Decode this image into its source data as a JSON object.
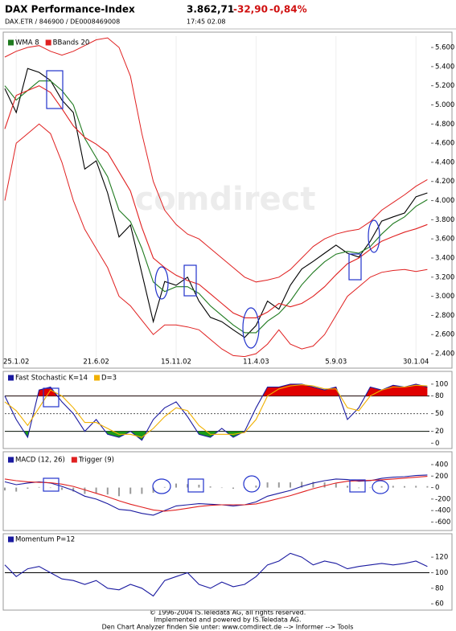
{
  "header": {
    "title": "DAX Performance-Index",
    "subtitle": "DAX.ETR / 846900 / DE0008469008",
    "price": "3.862,71",
    "change": "-32,90",
    "change_pct": "-0,84%",
    "time": "17:45  02.08"
  },
  "chart_data": [
    {
      "type": "line",
      "watermark": "comdirect",
      "categories": [
        null,
        "25.1.02",
        null,
        null,
        null,
        null,
        null,
        null,
        "21.6.02",
        null,
        null,
        null,
        null,
        null,
        null,
        "15.11.02",
        null,
        null,
        null,
        null,
        null,
        null,
        "11.4.03",
        null,
        null,
        null,
        null,
        null,
        null,
        "5.9.03",
        null,
        null,
        null,
        null,
        null,
        null,
        "30.1.04",
        null
      ],
      "series": [
        {
          "color": "#000000",
          "values": [
            5170,
            4920,
            5380,
            5340,
            5255,
            5050,
            4920,
            4330,
            4415,
            4080,
            3620,
            3745,
            3240,
            2735,
            3155,
            3115,
            3200,
            2950,
            2780,
            2735,
            2650,
            2570,
            2695,
            2950,
            2865,
            3115,
            3285,
            3365,
            3450,
            3535,
            3450,
            3410,
            3575,
            3785,
            3830,
            3870,
            4040,
            4080
          ]
        },
        {
          "name": "WMA 8",
          "color": "#1f7a1f",
          "values": [
            5200,
            5050,
            5150,
            5250,
            5250,
            5150,
            5000,
            4650,
            4450,
            4250,
            3900,
            3780,
            3500,
            3150,
            3050,
            3100,
            3100,
            3030,
            2900,
            2800,
            2700,
            2620,
            2620,
            2740,
            2820,
            2950,
            3120,
            3250,
            3360,
            3440,
            3470,
            3450,
            3520,
            3650,
            3760,
            3830,
            3940,
            4010
          ]
        },
        {
          "name": "BBands 20",
          "color": "#e02020",
          "values": [
            4750,
            5100,
            5150,
            5200,
            5130,
            4960,
            4780,
            4660,
            4590,
            4500,
            4300,
            4100,
            3720,
            3400,
            3300,
            3220,
            3165,
            3125,
            3025,
            2925,
            2825,
            2775,
            2775,
            2835,
            2925,
            2890,
            2925,
            3000,
            3100,
            3225,
            3340,
            3400,
            3490,
            3575,
            3625,
            3670,
            3705,
            3750
          ],
          "upper": [
            5500,
            5560,
            5600,
            5620,
            5560,
            5520,
            5560,
            5620,
            5680,
            5700,
            5600,
            5300,
            4700,
            4200,
            3900,
            3750,
            3650,
            3600,
            3500,
            3400,
            3300,
            3200,
            3150,
            3170,
            3200,
            3280,
            3400,
            3520,
            3600,
            3650,
            3680,
            3700,
            3780,
            3900,
            3980,
            4060,
            4150,
            4220
          ],
          "lower": [
            4000,
            4600,
            4700,
            4800,
            4700,
            4400,
            4000,
            3700,
            3500,
            3300,
            3000,
            2900,
            2750,
            2600,
            2700,
            2700,
            2680,
            2650,
            2550,
            2450,
            2380,
            2370,
            2400,
            2500,
            2650,
            2500,
            2450,
            2480,
            2600,
            2800,
            3000,
            3100,
            3200,
            3250,
            3270,
            3280,
            3260,
            3280
          ]
        }
      ],
      "ylim": [
        2350,
        5718
      ],
      "yticks": [
        {
          "value": 2400,
          "label": "2.400"
        },
        {
          "value": 2600,
          "label": "2.600"
        },
        {
          "value": 2800,
          "label": "2.800"
        },
        {
          "value": 3000,
          "label": "3.000"
        },
        {
          "value": 3200,
          "label": "3.200"
        },
        {
          "value": 3400,
          "label": "3.400"
        },
        {
          "value": 3600,
          "label": "3.600"
        },
        {
          "value": 3800,
          "label": "3.800"
        },
        {
          "value": 4000,
          "label": "4.000"
        },
        {
          "value": 4200,
          "label": "4.200"
        },
        {
          "value": 4400,
          "label": "4.400"
        },
        {
          "value": 4600,
          "label": "4.600"
        },
        {
          "value": 4800,
          "label": "4.800"
        },
        {
          "value": 5000,
          "label": "5.000"
        },
        {
          "value": 5200,
          "label": "5.200"
        },
        {
          "value": 5400,
          "label": "5.400"
        },
        {
          "value": 5600,
          "label": "5.600"
        }
      ]
    },
    {
      "type": "line",
      "series": [
        {
          "name": "Fast Stochastic K=14",
          "color": "#1a1aa0",
          "values": [
            80,
            40,
            10,
            90,
            95,
            70,
            50,
            20,
            40,
            15,
            10,
            20,
            5,
            40,
            60,
            70,
            45,
            15,
            10,
            25,
            10,
            20,
            60,
            95,
            95,
            100,
            100,
            95,
            90,
            95,
            40,
            60,
            95,
            90,
            98,
            95,
            100,
            95
          ],
          "fill_above": {
            "value": 80,
            "color": "#e00000"
          },
          "fill_below": {
            "value": 20,
            "color": "#1a9a1a"
          }
        },
        {
          "name": "D=3",
          "color": "#f0b000",
          "values": [
            70,
            55,
            30,
            60,
            90,
            80,
            60,
            35,
            35,
            25,
            15,
            15,
            10,
            25,
            45,
            60,
            55,
            30,
            15,
            15,
            15,
            18,
            40,
            80,
            92,
            97,
            99,
            97,
            92,
            92,
            60,
            55,
            80,
            90,
            95,
            95,
            98,
            97
          ]
        }
      ],
      "ref_lines": [
        {
          "value": 80
        },
        {
          "value": 50,
          "dashed": true
        },
        {
          "value": 20
        }
      ],
      "ylim": [
        -5,
        108
      ],
      "yticks": [
        0,
        20,
        50,
        80,
        100
      ]
    },
    {
      "type": "line",
      "series": [
        {
          "color": "#999999",
          "type": "bars",
          "values": [
            -50,
            -70,
            -20,
            10,
            -5,
            -40,
            -70,
            -110,
            -100,
            -120,
            -150,
            -110,
            -110,
            -90,
            10,
            70,
            60,
            50,
            20,
            0,
            -20,
            0,
            35,
            90,
            90,
            90,
            100,
            100,
            90,
            70,
            30,
            -10,
            -5,
            25,
            30,
            25,
            30,
            25
          ]
        },
        {
          "name": "MACD (12, 26)",
          "color": "#1a1aa0",
          "values": [
            100,
            50,
            80,
            100,
            80,
            20,
            -50,
            -150,
            -200,
            -280,
            -380,
            -400,
            -450,
            -480,
            -400,
            -320,
            -300,
            -280,
            -290,
            -300,
            -320,
            -300,
            -250,
            -150,
            -100,
            -50,
            20,
            80,
            120,
            150,
            140,
            110,
            120,
            160,
            180,
            190,
            210,
            220
          ]
        },
        {
          "name": "Trigger (9)",
          "color": "#e02020",
          "values": [
            150,
            120,
            100,
            90,
            85,
            60,
            20,
            -40,
            -100,
            -160,
            -230,
            -290,
            -340,
            -390,
            -410,
            -390,
            -360,
            -330,
            -310,
            -300,
            -300,
            -300,
            -285,
            -240,
            -190,
            -140,
            -80,
            -20,
            30,
            80,
            110,
            120,
            125,
            135,
            150,
            165,
            180,
            195
          ]
        }
      ],
      "ylim": [
        -720,
        540
      ],
      "yticks": [
        -600,
        -400,
        -200,
        0,
        200,
        400
      ]
    },
    {
      "type": "line",
      "series": [
        {
          "name": "Momentum P=12",
          "color": "#1a1aa0",
          "values": [
            110,
            95,
            105,
            108,
            100,
            92,
            90,
            85,
            90,
            80,
            78,
            85,
            80,
            70,
            90,
            95,
            100,
            85,
            80,
            88,
            82,
            85,
            95,
            110,
            115,
            125,
            120,
            110,
            115,
            112,
            105,
            108,
            110,
            112,
            110,
            112,
            115,
            108
          ]
        }
      ],
      "ref_lines": [
        {
          "value": 100
        }
      ],
      "ylim": [
        54,
        147
      ],
      "yticks": [
        60,
        80,
        100,
        120
      ]
    }
  ],
  "footer": [
    "© 1996-2004 IS.Teledata AG, all rights reserved.",
    "Implemented and powered by IS.Teledata AG.",
    "Den Chart Analyzer finden Sie unter: www.comdirect.de --> Informer --> Tools"
  ]
}
